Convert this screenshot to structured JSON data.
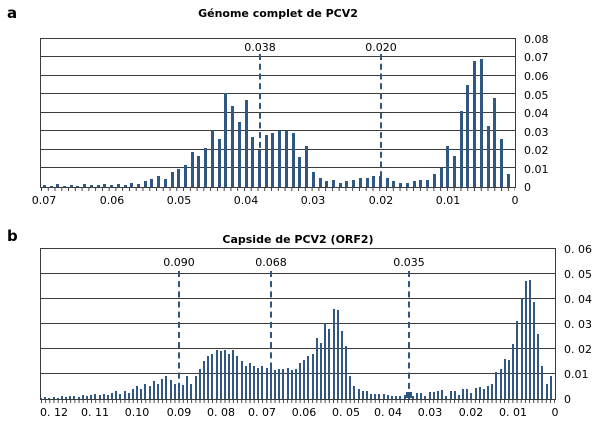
{
  "figure": {
    "background": "#ffffff",
    "bar_color": "#315883",
    "threshold_color": "#2F5680",
    "grid_color": "#3c3c3c",
    "text_color": "#000000"
  },
  "chart_data": [
    {
      "type": "bar",
      "panel_label": "a",
      "title": "Génome complet de PCV2",
      "x_axis": {
        "reversed": true,
        "max_edge": 0.0705,
        "min": 0,
        "tick_values": [
          0.07,
          0.06,
          0.05,
          0.04,
          0.03,
          0.02,
          0.01,
          0
        ],
        "tick_labels": [
          "0.07",
          "0.06",
          "0.05",
          "0.04",
          "0.03",
          "0.02",
          "0.01",
          "0"
        ]
      },
      "y_axis": {
        "min": 0,
        "max": 0.08,
        "tick_values": [
          0.08,
          0.07,
          0.06,
          0.05,
          0.04,
          0.03,
          0.02,
          0.01,
          0
        ],
        "tick_labels": [
          "0.08",
          "0.07",
          "0.06",
          "0.05",
          "0.04",
          "0.03",
          "0.02",
          "0.01",
          "0"
        ]
      },
      "grid": true,
      "thresholds": [
        {
          "value": 0.038,
          "label": "0.038",
          "marker": false
        },
        {
          "value": 0.02,
          "label": "0.020",
          "marker": false
        }
      ],
      "bars": {
        "x_start": 0.07,
        "x_step": -0.001,
        "values": [
          0.001,
          0.0008,
          0.0015,
          0.0008,
          0.0012,
          0.0008,
          0.0015,
          0.001,
          0.0012,
          0.0018,
          0.001,
          0.0018,
          0.0012,
          0.002,
          0.0015,
          0.003,
          0.0045,
          0.006,
          0.0045,
          0.008,
          0.0095,
          0.012,
          0.019,
          0.017,
          0.021,
          0.031,
          0.026,
          0.051,
          0.044,
          0.035,
          0.047,
          0.027,
          0.02,
          0.028,
          0.029,
          0.03,
          0.03,
          0.029,
          0.016,
          0.022,
          0.008,
          0.005,
          0.003,
          0.004,
          0.002,
          0.003,
          0.004,
          0.005,
          0.005,
          0.006,
          0.006,
          0.005,
          0.003,
          0.002,
          0.002,
          0.003,
          0.004,
          0.004,
          0.007,
          0.01,
          0.022,
          0.017,
          0.041,
          0.055,
          0.068,
          0.069,
          0.033,
          0.048,
          0.026,
          0.007
        ]
      }
    },
    {
      "type": "bar",
      "panel_label": "b",
      "title": "Capside de PCV2 (ORF2)",
      "x_axis": {
        "reversed": true,
        "max_edge": 0.123,
        "min": 0,
        "tick_values": [
          0.12,
          0.11,
          0.1,
          0.09,
          0.08,
          0.07,
          0.06,
          0.05,
          0.04,
          0.03,
          0.02,
          0.01,
          0
        ],
        "tick_labels": [
          "0. 12",
          "0. 11",
          "0.10",
          "0.09",
          "0. 08",
          "0. 07",
          "0.06",
          "0. 05",
          "0. 04",
          "0.03",
          "0.02",
          "0. 01",
          "0"
        ]
      },
      "y_axis": {
        "min": 0,
        "max": 0.06,
        "tick_values": [
          0.06,
          0.05,
          0.04,
          0.03,
          0.02,
          0.01,
          0
        ],
        "tick_labels": [
          "0. 06",
          "0. 05",
          "0. 04",
          "0. 03",
          "0. 02",
          "0.01",
          "0"
        ]
      },
      "grid": true,
      "thresholds": [
        {
          "value": 0.09,
          "label": "0.090",
          "marker": false
        },
        {
          "value": 0.068,
          "label": "0.068",
          "marker": false
        },
        {
          "value": 0.035,
          "label": "0.035",
          "marker": true
        }
      ],
      "bars": {
        "x_start": 0.123,
        "x_step": -0.001,
        "values": [
          0.0005,
          0.0008,
          0.0005,
          0.0008,
          0.0005,
          0.001,
          0.0006,
          0.001,
          0.0012,
          0.0008,
          0.0015,
          0.001,
          0.0015,
          0.002,
          0.0015,
          0.002,
          0.0015,
          0.0022,
          0.003,
          0.002,
          0.003,
          0.0025,
          0.004,
          0.005,
          0.004,
          0.006,
          0.005,
          0.007,
          0.006,
          0.008,
          0.009,
          0.0075,
          0.006,
          0.005,
          0.0055,
          0.009,
          0.006,
          0.009,
          0.012,
          0.015,
          0.017,
          0.018,
          0.0195,
          0.019,
          0.0195,
          0.018,
          0.0195,
          0.017,
          0.015,
          0.013,
          0.0145,
          0.013,
          0.0125,
          0.013,
          0.0125,
          0.0125,
          0.0115,
          0.012,
          0.0118,
          0.0125,
          0.0115,
          0.012,
          0.0145,
          0.0155,
          0.017,
          0.018,
          0.0245,
          0.0225,
          0.0305,
          0.028,
          0.036,
          0.0355,
          0.027,
          0.021,
          0.009,
          0.005,
          0.004,
          0.003,
          0.003,
          0.002,
          0.002,
          0.002,
          0.002,
          0.0017,
          0.0013,
          0.0013,
          0.001,
          0.0015,
          0.002,
          0.001,
          0.0023,
          0.0023,
          0.001,
          0.0027,
          0.0027,
          0.0033,
          0.0036,
          0.001,
          0.003,
          0.003,
          0.0015,
          0.004,
          0.004,
          0.0025,
          0.0044,
          0.0047,
          0.004,
          0.0053,
          0.006,
          0.0107,
          0.012,
          0.016,
          0.0156,
          0.022,
          0.0313,
          0.04,
          0.0473,
          0.0477,
          0.0387,
          0.026,
          0.0133,
          0.006,
          0.0093
        ]
      }
    }
  ]
}
